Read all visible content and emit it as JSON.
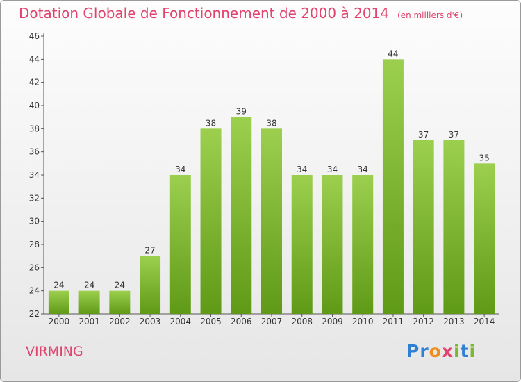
{
  "title": "Dotation Globale de Fonctionnement de 2000 à 2014",
  "unit_note": "(en milliers d'€)",
  "commune": "VIRMING",
  "logo": {
    "p": "P",
    "r": "r",
    "o": "o",
    "x": "x",
    "i1": "i",
    "t": "t",
    "i2": "i"
  },
  "colors": {
    "title": "#e0436e",
    "bar_top": "#9ccf4e",
    "bar_bottom": "#5f9a16",
    "text": "#333333"
  },
  "chart_data": {
    "type": "bar",
    "title": "Dotation Globale de Fonctionnement de 2000 à 2014",
    "subtitle": "(en milliers d'€)",
    "categories": [
      "2000",
      "2001",
      "2002",
      "2003",
      "2004",
      "2005",
      "2006",
      "2007",
      "2008",
      "2009",
      "2010",
      "2011",
      "2012",
      "2013",
      "2014"
    ],
    "values": [
      24,
      24,
      24,
      27,
      34,
      38,
      39,
      38,
      34,
      34,
      34,
      44,
      37,
      37,
      35
    ],
    "ylim": [
      22,
      46
    ],
    "yticks": [
      22,
      24,
      26,
      28,
      30,
      32,
      34,
      36,
      38,
      40,
      42,
      44,
      46
    ],
    "grid": false,
    "legend": "none"
  }
}
